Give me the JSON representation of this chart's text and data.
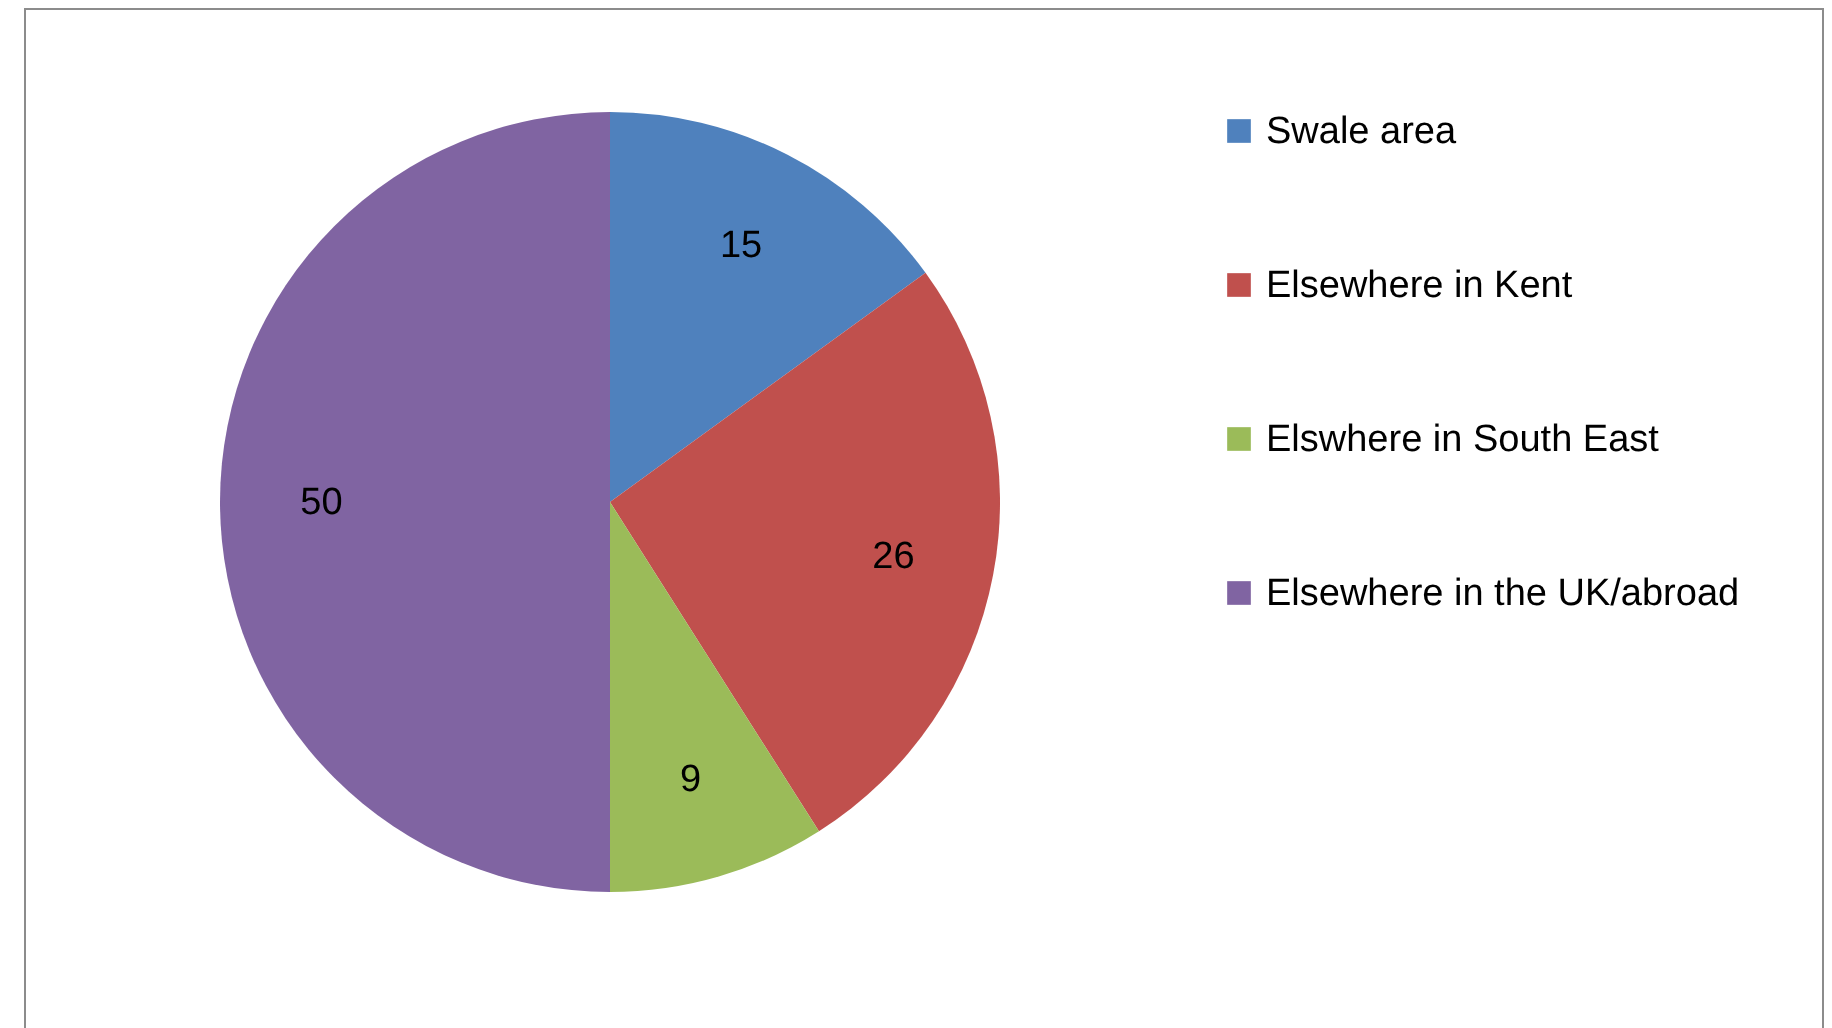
{
  "chart_data": {
    "type": "pie",
    "categories": [
      "Swale area",
      "Elsewhere in Kent",
      "Elswhere in  South East",
      "Elsewhere in the UK/abroad"
    ],
    "values": [
      15,
      26,
      9,
      50
    ],
    "colors": [
      "#4f81bd",
      "#c0504d",
      "#9bbb59",
      "#8064a2"
    ],
    "data_labels": true,
    "legend": "right"
  }
}
